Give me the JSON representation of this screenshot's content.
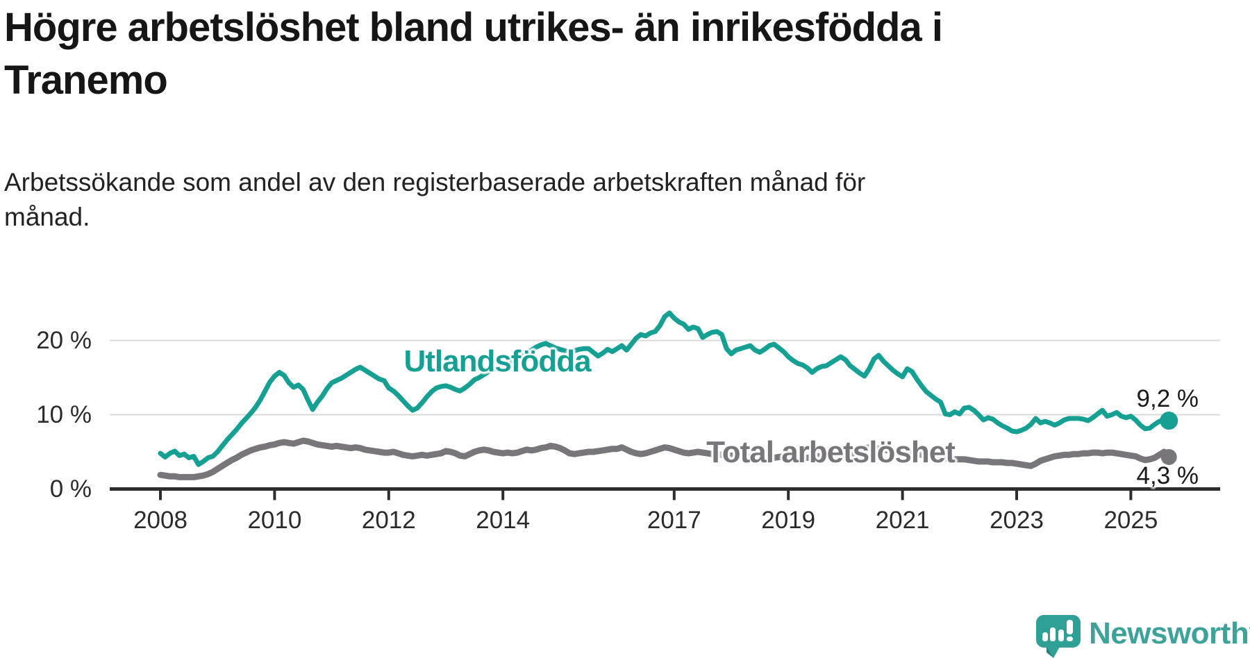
{
  "header": {
    "title_lines": [
      "Högre arbetslöshet bland utrikes- än inrikesfödda i",
      "Tranemo"
    ],
    "subtitle_lines": [
      "Arbetssökande som andel av den registerbaserade arbetskraften månad för",
      "månad."
    ]
  },
  "footer": {
    "brand": "Newsworthy",
    "logo_icon": "newsworthy-speech-bubble-barchart-icon"
  },
  "chart_data": {
    "type": "line",
    "unit": "%",
    "grid": "horizontal",
    "ylim": [
      0,
      25
    ],
    "x_start": 2008.0,
    "x_step_months": 1,
    "x_ticks": [
      2008,
      2010,
      2012,
      2014,
      2017,
      2019,
      2021,
      2023,
      2025
    ],
    "y_ticks": [
      {
        "value": 20,
        "label": "20 %"
      },
      {
        "value": 10,
        "label": "10 %"
      },
      {
        "value": 0,
        "label": "0 %"
      }
    ],
    "series": [
      {
        "name": "Utlandsfödda",
        "color": "#16a094",
        "end_label": "9,2 %",
        "end_value": 9.2,
        "values": [
          4.8,
          4.3,
          4.8,
          5.1,
          4.5,
          4.7,
          4.2,
          4.4,
          3.3,
          3.7,
          4.2,
          4.4,
          5.0,
          5.8,
          6.6,
          7.3,
          8.0,
          8.8,
          9.5,
          10.2,
          11.0,
          12.0,
          13.2,
          14.4,
          15.2,
          15.7,
          15.3,
          14.3,
          13.7,
          14.0,
          13.4,
          12.0,
          10.7,
          11.7,
          12.5,
          13.5,
          14.3,
          14.6,
          14.9,
          15.3,
          15.7,
          16.1,
          16.4,
          16.0,
          15.6,
          15.2,
          14.8,
          14.6,
          13.6,
          13.2,
          12.6,
          11.9,
          11.2,
          10.6,
          10.9,
          11.6,
          12.4,
          13.1,
          13.6,
          13.8,
          13.9,
          13.7,
          13.4,
          13.2,
          13.6,
          14.1,
          14.7,
          15.0,
          15.4,
          15.8,
          16.1,
          16.4,
          16.7,
          17.0,
          17.3,
          17.6,
          17.9,
          18.3,
          18.7,
          19.1,
          19.4,
          19.6,
          19.3,
          19.0,
          18.8,
          18.6,
          18.5,
          18.6,
          18.8,
          18.9,
          18.9,
          18.4,
          17.9,
          18.3,
          18.8,
          18.5,
          18.9,
          19.3,
          18.7,
          19.5,
          20.3,
          20.8,
          20.6,
          21.0,
          21.2,
          22.0,
          23.2,
          23.7,
          23.0,
          22.5,
          22.2,
          21.5,
          21.8,
          21.6,
          20.4,
          20.8,
          21.1,
          21.2,
          20.8,
          18.9,
          18.2,
          18.7,
          18.9,
          19.1,
          19.3,
          18.7,
          18.4,
          18.8,
          19.3,
          19.5,
          19.0,
          18.5,
          17.8,
          17.3,
          16.9,
          16.7,
          16.3,
          15.7,
          16.2,
          16.5,
          16.6,
          17.0,
          17.4,
          17.8,
          17.4,
          16.6,
          16.1,
          15.6,
          15.2,
          16.2,
          17.5,
          18.0,
          17.2,
          16.6,
          16.0,
          15.5,
          15.1,
          16.2,
          15.8,
          14.8,
          13.9,
          13.1,
          12.6,
          12.1,
          11.7,
          10.1,
          10.0,
          10.4,
          10.1,
          10.9,
          11.0,
          10.6,
          10.0,
          9.3,
          9.6,
          9.4,
          8.9,
          8.5,
          8.2,
          7.8,
          7.7,
          7.9,
          8.2,
          8.7,
          9.5,
          8.9,
          9.1,
          8.9,
          8.6,
          8.9,
          9.3,
          9.5,
          9.5,
          9.5,
          9.4,
          9.2,
          9.6,
          10.1,
          10.6,
          9.8,
          10.0,
          10.3,
          9.8,
          9.6,
          9.8,
          9.3,
          8.6,
          8.1,
          8.2,
          8.7,
          9.1,
          9.3,
          9.2
        ]
      },
      {
        "name": "Total arbetslöshet",
        "color": "#78767b",
        "end_label": "4,3 %",
        "end_value": 4.3,
        "values": [
          1.9,
          1.8,
          1.7,
          1.7,
          1.6,
          1.6,
          1.6,
          1.6,
          1.7,
          1.8,
          2.0,
          2.3,
          2.7,
          3.1,
          3.5,
          3.9,
          4.2,
          4.6,
          4.9,
          5.2,
          5.4,
          5.6,
          5.7,
          5.9,
          6.0,
          6.2,
          6.3,
          6.2,
          6.1,
          6.3,
          6.5,
          6.4,
          6.2,
          6.0,
          5.9,
          5.8,
          5.7,
          5.8,
          5.7,
          5.6,
          5.5,
          5.6,
          5.5,
          5.3,
          5.2,
          5.1,
          5.0,
          4.9,
          4.9,
          5.0,
          4.8,
          4.6,
          4.5,
          4.4,
          4.5,
          4.6,
          4.5,
          4.6,
          4.7,
          4.8,
          5.1,
          5.0,
          4.8,
          4.5,
          4.4,
          4.7,
          5.0,
          5.2,
          5.3,
          5.2,
          5.0,
          4.9,
          4.8,
          4.9,
          4.8,
          4.9,
          5.1,
          5.3,
          5.2,
          5.3,
          5.5,
          5.6,
          5.8,
          5.7,
          5.5,
          5.2,
          4.8,
          4.7,
          4.8,
          4.9,
          5.0,
          5.0,
          5.1,
          5.2,
          5.3,
          5.4,
          5.4,
          5.6,
          5.3,
          5.0,
          4.8,
          4.7,
          4.8,
          5.0,
          5.2,
          5.4,
          5.6,
          5.5,
          5.3,
          5.1,
          4.9,
          4.8,
          4.9,
          5.0,
          4.9,
          4.8,
          4.7,
          4.7,
          4.6,
          4.6,
          4.5,
          4.5,
          4.4,
          4.4,
          4.3,
          4.3,
          4.4,
          4.3,
          4.3,
          4.2,
          4.3,
          4.4,
          4.4,
          4.3,
          4.3,
          4.2,
          4.2,
          4.3,
          4.4,
          4.4,
          4.3,
          4.4,
          4.5,
          4.6,
          4.6,
          4.7,
          4.9,
          5.3,
          5.5,
          5.6,
          5.5,
          5.4,
          5.3,
          5.2,
          5.1,
          5.0,
          5.0,
          4.9,
          4.8,
          4.7,
          4.6,
          4.5,
          4.4,
          4.3,
          4.2,
          4.1,
          4.0,
          4.0,
          4.0,
          4.0,
          3.9,
          3.8,
          3.7,
          3.7,
          3.7,
          3.6,
          3.6,
          3.6,
          3.5,
          3.5,
          3.4,
          3.3,
          3.2,
          3.1,
          3.4,
          3.8,
          4.0,
          4.2,
          4.4,
          4.5,
          4.6,
          4.6,
          4.7,
          4.7,
          4.8,
          4.8,
          4.9,
          4.9,
          4.8,
          4.9,
          4.9,
          4.8,
          4.7,
          4.6,
          4.5,
          4.4,
          4.1,
          3.9,
          4.0,
          4.2,
          4.6,
          5.0,
          4.3
        ]
      }
    ]
  }
}
